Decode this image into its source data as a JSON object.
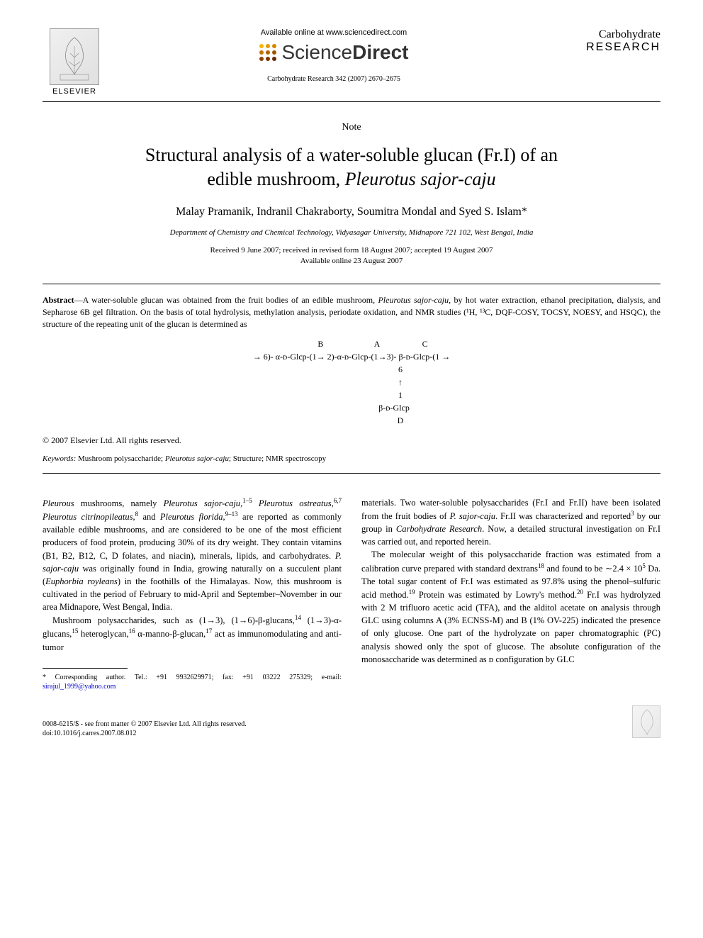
{
  "header": {
    "publisher": "ELSEVIER",
    "available_text": "Available online at www.sciencedirect.com",
    "sd_brand_1": "Science",
    "sd_brand_2": "Direct",
    "journal_ref": "Carbohydrate Research 342 (2007) 2670–2675",
    "journal_title_1": "Carbohydrate",
    "journal_title_2": "RESEARCH",
    "sd_dot_colors": [
      "#f7b500",
      "#e89c00",
      "#d68400",
      "#c47200",
      "#b56200",
      "#a05200",
      "#8c4200",
      "#7a3600",
      "#682a00"
    ]
  },
  "article": {
    "type_label": "Note",
    "title_line1": "Structural analysis of a water-soluble glucan (Fr.I) of an",
    "title_line2_pre": "edible mushroom, ",
    "title_line2_italic": "Pleurotus sajor-caju",
    "authors": "Malay Pramanik, Indranil Chakraborty, Soumitra Mondal and Syed S. Islam*",
    "affiliation": "Department of Chemistry and Chemical Technology, Vidyasagar University, Midnapore 721 102, West Bengal, India",
    "dates_line1": "Received 9 June 2007; received in revised form 18 August 2007; accepted 19 August 2007",
    "dates_line2": "Available online 23 August 2007"
  },
  "abstract": {
    "label": "Abstract",
    "text_pre": "—A water-soluble glucan was obtained from the fruit bodies of an edible mushroom, ",
    "text_italic1": "Pleurotus sajor-caju",
    "text_post": ", by hot water extraction, ethanol precipitation, dialysis, and Sepharose 6B gel filtration. On the basis of total hydrolysis, methylation analysis, periodate oxidation, and NMR studies (¹H, ¹³C, DQF-COSY, TOCSY, NOESY, and HSQC), the structure of the repeating unit of the glucan is determined as"
  },
  "structure": {
    "row_labels": "                    B                        A                    C",
    "row_main": "→ 6)- α-ᴅ-Glcp-(1→ 2)-α-ᴅ-Glcp-(1→3)- β-ᴅ-Glcp-(1 →",
    "row_6": "                                              6",
    "row_arrow": "                                              ↑",
    "row_1": "                                              1",
    "row_bottom": "                                        β-ᴅ-Glcp",
    "row_d": "                                              D"
  },
  "copyright": "© 2007 Elsevier Ltd. All rights reserved.",
  "keywords": {
    "label": "Keywords:",
    "text_pre": " Mushroom polysaccharide; ",
    "text_italic": "Pleurotus sajor-caju",
    "text_post": "; Structure; NMR spectroscopy"
  },
  "body": {
    "left": {
      "p1_html": "<span class='italic'>Pleurous</span> mushrooms, namely <span class='italic'>Pleurotus sajor-caju</span>,<span class='sup'>1–5</span> <span class='italic'>Pleurotus ostreatus</span>,<span class='sup'>6,7</span> <span class='italic'>Pleurotus citrinopileatus</span>,<span class='sup'>8</span> and <span class='italic'>Pleurotus florida</span>,<span class='sup'>9–13</span> are reported as commonly available edible mushrooms, and are considered to be one of the most efficient producers of food protein, producing 30% of its dry weight. They contain vitamins (B1, B2, B12, C, D folates, and niacin), minerals, lipids, and carbohydrates. <span class='italic'>P. sajor-caju</span> was originally found in India, growing naturally on a succulent plant (<span class='italic'>Euphorbia royleans</span>) in the foothills of the Himalayas. Now, this mushroom is cultivated in the period of February to mid-April and September–November in our area Midnapore, West Bengal, India.",
      "p2_html": "Mushroom polysaccharides, such as (1→3), (1→6)-β-glucans,<span class='sup'>14</span> (1→3)-α-glucans,<span class='sup'>15</span> heteroglycan,<span class='sup'>16</span> α-manno-β-glucan,<span class='sup'>17</span> act as immunomodulating and anti-tumor"
    },
    "right": {
      "p1_html": "materials. Two water-soluble polysaccharides (Fr.I and Fr.II) have been isolated from the fruit bodies of <span class='italic'>P. sajor-caju</span>. Fr.II was characterized and reported<span class='sup'>3</span> by our group in <span class='italic'>Carbohydrate Research</span>. Now, a detailed structural investigation on Fr.I was carried out, and reported herein.",
      "p2_html": "The molecular weight of this polysaccharide fraction was estimated from a calibration curve prepared with standard dextrans<span class='sup'>18</span> and found to be ∼2.4 × 10<span class='sup'>5</span> Da. The total sugar content of Fr.I was estimated as 97.8% using the phenol–sulfuric acid method.<span class='sup'>19</span> Protein was estimated by Lowry's method.<span class='sup'>20</span> Fr.I was hydrolyzed with 2 M trifluoro acetic acid (TFA), and the alditol acetate on analysis through GLC using columns A (3% ECNSS-M) and B (1% OV-225) indicated the presence of only glucose. One part of the hydrolyzate on paper chromatographic (PC) analysis showed only the spot of glucose. The absolute configuration of the monosaccharide was determined as ᴅ configuration by GLC"
    }
  },
  "footnote": {
    "text_pre": "* Corresponding author. Tel.: +91 9932629971; fax: +91 03222 275329; e-mail: ",
    "email": "sirajul_1999@yahoo.com"
  },
  "footer": {
    "line1": "0008-6215/$ - see front matter © 2007 Elsevier Ltd. All rights reserved.",
    "line2": "doi:10.1016/j.carres.2007.08.012"
  },
  "colors": {
    "text": "#000000",
    "bg": "#ffffff",
    "link": "#0000cc",
    "border": "#000000"
  }
}
